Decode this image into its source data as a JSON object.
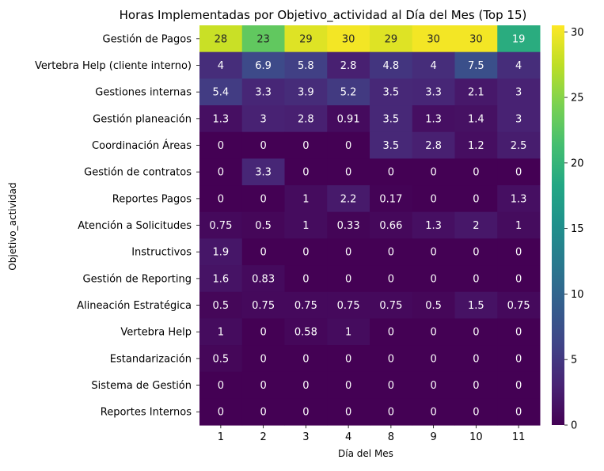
{
  "chart_data": {
    "type": "heatmap",
    "title": "Horas Implementadas por Objetivo_actividad al Día del Mes (Top 15)",
    "xlabel": "Día del Mes",
    "ylabel": "Objetivo_actividad",
    "x_categories": [
      "1",
      "2",
      "3",
      "4",
      "8",
      "9",
      "10",
      "11"
    ],
    "y_categories": [
      "Gestión de Pagos",
      "Vertebra Help (cliente interno)",
      "Gestiones internas",
      "Gestión planeación",
      "Coordinación Áreas",
      "Gestión de contratos",
      "Reportes Pagos",
      "Atención a Solicitudes",
      "Instructivos",
      "Gestión de Reporting",
      "Alineación Estratégica",
      "Vertebra Help",
      "Estandarización",
      "Sistema de Gestión",
      "Reportes Internos"
    ],
    "values": [
      [
        28,
        23,
        29,
        30,
        29,
        30,
        30,
        19
      ],
      [
        4,
        6.9,
        5.8,
        2.8,
        4.8,
        4,
        7.5,
        4
      ],
      [
        5.4,
        3.3,
        3.9,
        5.2,
        3.5,
        3.3,
        2.1,
        3
      ],
      [
        1.3,
        3,
        2.8,
        0.91,
        3.5,
        1.3,
        1.4,
        3
      ],
      [
        0,
        0,
        0,
        0,
        3.5,
        2.8,
        1.2,
        2.5
      ],
      [
        0,
        3.3,
        0,
        0,
        0,
        0,
        0,
        0
      ],
      [
        0,
        0,
        1,
        2.2,
        0.17,
        0,
        0,
        1.3
      ],
      [
        0.75,
        0.5,
        1,
        0.33,
        0.66,
        1.3,
        2,
        1
      ],
      [
        1.9,
        0,
        0,
        0,
        0,
        0,
        0,
        0
      ],
      [
        1.6,
        0.83,
        0,
        0,
        0,
        0,
        0,
        0
      ],
      [
        0.5,
        0.75,
        0.75,
        0.75,
        0.75,
        0.5,
        1.5,
        0.75
      ],
      [
        1,
        0,
        0.58,
        1,
        0,
        0,
        0,
        0
      ],
      [
        0.5,
        0,
        0,
        0,
        0,
        0,
        0,
        0
      ],
      [
        0,
        0,
        0,
        0,
        0,
        0,
        0,
        0
      ],
      [
        0,
        0,
        0,
        0,
        0,
        0,
        0,
        0
      ]
    ],
    "colormap": "viridis",
    "colorbar": {
      "min": 0,
      "max": 30.5,
      "ticks": [
        0,
        5,
        10,
        15,
        20,
        25,
        30
      ]
    },
    "annotations": true
  }
}
